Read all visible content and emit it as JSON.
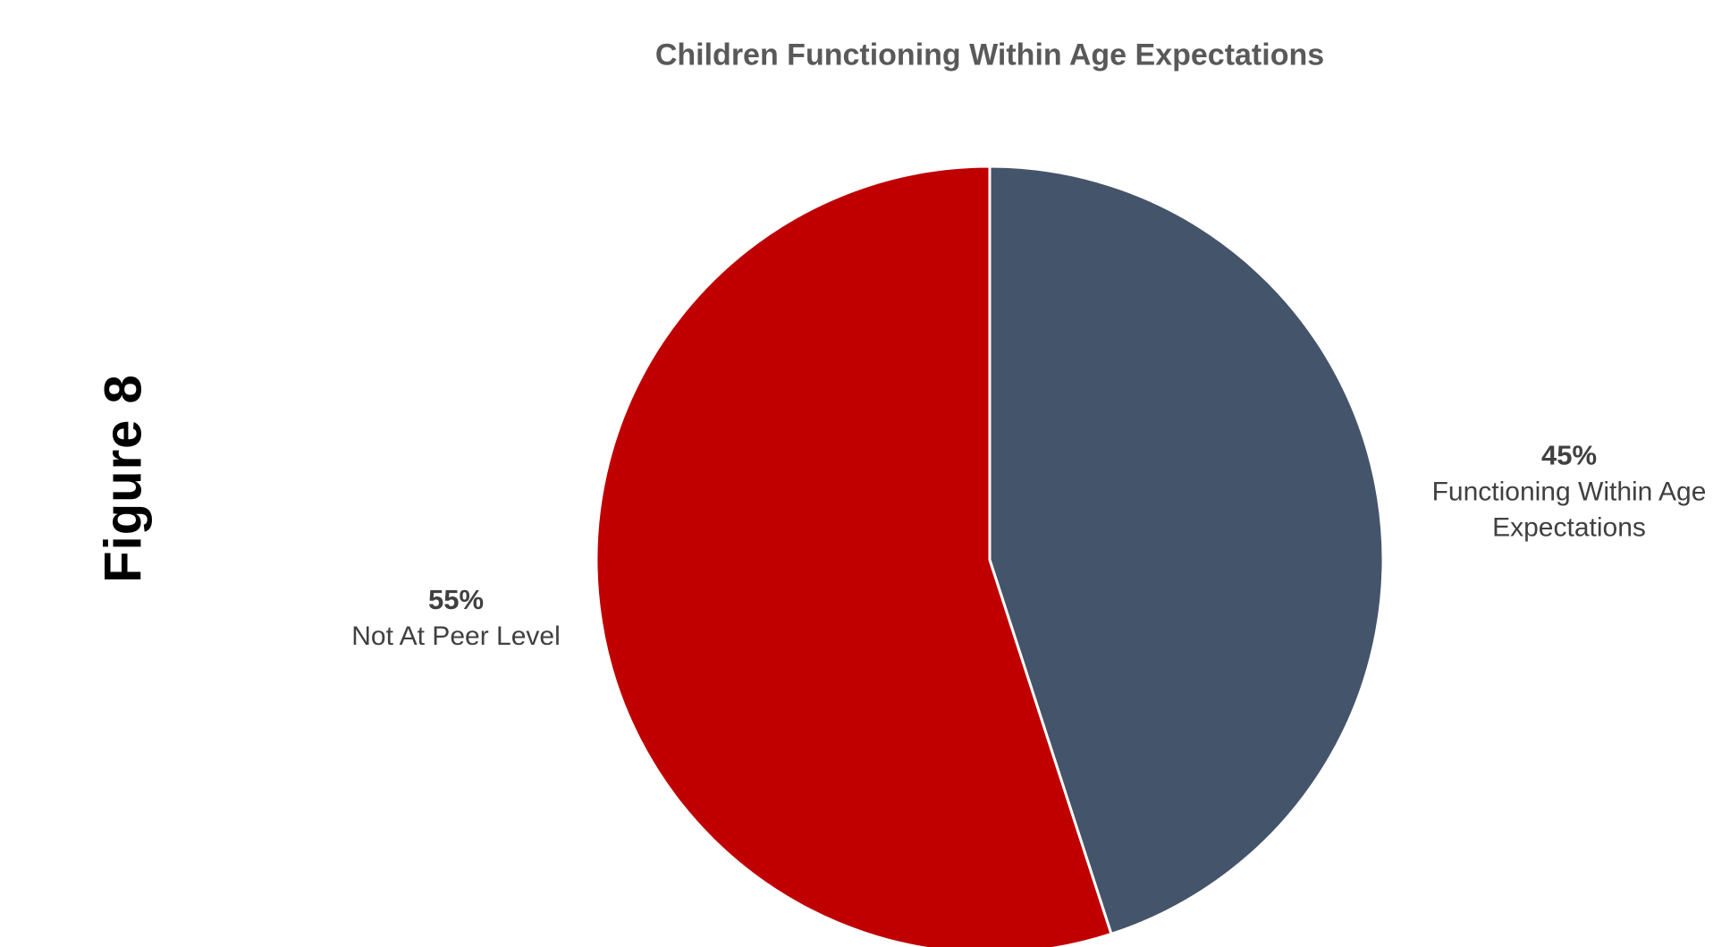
{
  "figure_label": "Figure 8",
  "chart_data": {
    "type": "pie",
    "title": "Children Functioning Within Age Expectations",
    "slices": [
      {
        "label": "Functioning Within Age Expectations",
        "label_lines": [
          "Functioning Within Age",
          "Expectations"
        ],
        "value": 45,
        "display": "45%",
        "color": "#44546A"
      },
      {
        "label": "Not At Peer Level",
        "label_lines": [
          "Not At Peer Level"
        ],
        "value": 55,
        "display": "55%",
        "color": "#C00000"
      }
    ]
  }
}
